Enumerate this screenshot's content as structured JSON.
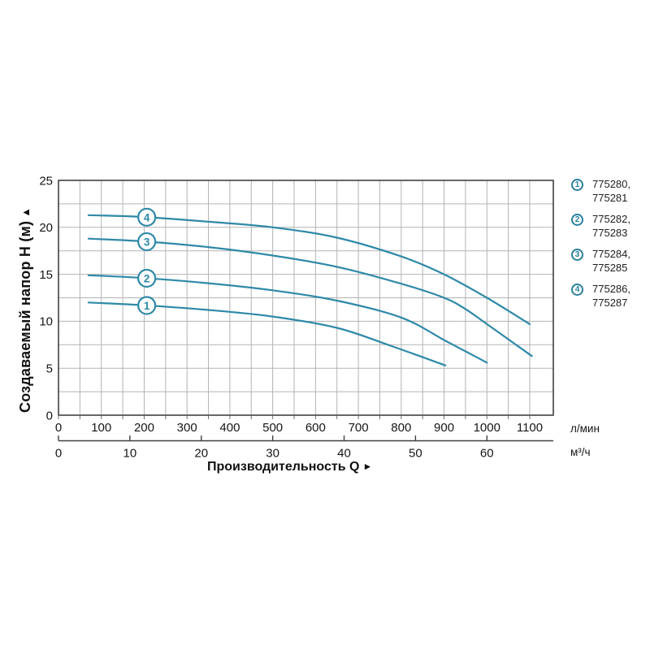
{
  "chart_data": {
    "type": "line",
    "ylabel": "Создаваемый напор H (м)",
    "xlabel": "Производительность Q",
    "y_axis": {
      "min": 0,
      "max": 25,
      "ticks": [
        0,
        5,
        10,
        15,
        20,
        25
      ],
      "grid_step": 2.5
    },
    "x_axis_lpm": {
      "unit": "л/мин",
      "min": 0,
      "max": 1155,
      "ticks": [
        0,
        100,
        200,
        300,
        400,
        500,
        600,
        700,
        800,
        900,
        1000,
        1100
      ],
      "grid_step": 50
    },
    "x_axis_m3h": {
      "unit": "м³/ч",
      "ticks": [
        0,
        10,
        20,
        30,
        40,
        50,
        60
      ],
      "lpm_per_unit": 16.6667
    },
    "grid": true,
    "legend_position": "right",
    "series": [
      {
        "number": "1",
        "label_at_lpm": 206,
        "points_lpm_h": [
          [
            70,
            12.0
          ],
          [
            200,
            11.7
          ],
          [
            350,
            11.2
          ],
          [
            500,
            10.5
          ],
          [
            650,
            9.3
          ],
          [
            775,
            7.4
          ],
          [
            903,
            5.3
          ]
        ]
      },
      {
        "number": "2",
        "label_at_lpm": 206,
        "points_lpm_h": [
          [
            70,
            14.9
          ],
          [
            200,
            14.6
          ],
          [
            350,
            14.05
          ],
          [
            500,
            13.3
          ],
          [
            650,
            12.2
          ],
          [
            800,
            10.4
          ],
          [
            900,
            8.0
          ],
          [
            950,
            6.8
          ],
          [
            1000,
            5.6
          ]
        ]
      },
      {
        "number": "3",
        "label_at_lpm": 206,
        "points_lpm_h": [
          [
            70,
            18.8
          ],
          [
            200,
            18.5
          ],
          [
            350,
            17.9
          ],
          [
            500,
            17.0
          ],
          [
            650,
            15.8
          ],
          [
            800,
            14.0
          ],
          [
            900,
            12.5
          ],
          [
            950,
            11.3
          ],
          [
            1000,
            9.7
          ],
          [
            1105,
            6.3
          ]
        ]
      },
      {
        "number": "4",
        "label_at_lpm": 206,
        "points_lpm_h": [
          [
            70,
            21.3
          ],
          [
            200,
            21.1
          ],
          [
            350,
            20.6
          ],
          [
            500,
            20.0
          ],
          [
            650,
            18.9
          ],
          [
            800,
            16.9
          ],
          [
            900,
            15.0
          ],
          [
            1000,
            12.5
          ],
          [
            1100,
            9.7
          ]
        ]
      }
    ],
    "legend": [
      {
        "number": "1",
        "line1": "775280,",
        "line2": "775281"
      },
      {
        "number": "2",
        "line1": "775282,",
        "line2": "775283"
      },
      {
        "number": "3",
        "line1": "775284,",
        "line2": "775285"
      },
      {
        "number": "4",
        "line1": "775286,",
        "line2": "775287"
      }
    ],
    "colors": {
      "curve": "#2e89a8",
      "grid": "#b3b3b3",
      "axis": "#404040",
      "text": "#161616"
    }
  },
  "labels": {
    "y_title_arrow": "▲",
    "x_title_arrow": "►"
  }
}
